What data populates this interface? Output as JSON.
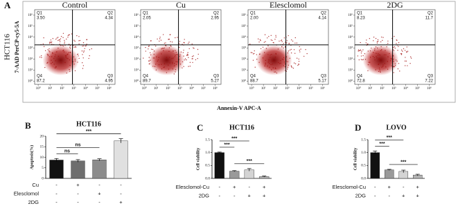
{
  "chart_data": [
    {
      "type": "flow",
      "panel_label": "A",
      "row_label": "HCT116",
      "ylabel": "7-AAD PerCP-cy5-5A",
      "xlabel": "Annexin-V APC-A",
      "quadrant_names": [
        "Q1",
        "Q2",
        "Q3",
        "Q4"
      ],
      "xlim": [
        -0.3,
        6.5
      ],
      "ylim": [
        -0.3,
        6.5
      ],
      "xticks": [
        {
          "value": 0,
          "label": "10⁰"
        },
        {
          "value": 1,
          "label": "10¹"
        },
        {
          "value": 2,
          "label": "10²"
        },
        {
          "value": 3,
          "label": "10³"
        },
        {
          "value": 4,
          "label": "10⁴"
        },
        {
          "value": 5,
          "label": "10⁵"
        },
        {
          "value": 6,
          "label": "10⁶"
        }
      ],
      "yticks": [
        {
          "value": 0,
          "label": "10⁰"
        },
        {
          "value": 1,
          "label": "10¹"
        },
        {
          "value": 2,
          "label": "10²"
        },
        {
          "value": 3,
          "label": "10³"
        },
        {
          "value": 4,
          "label": "10⁴"
        },
        {
          "value": 5,
          "label": "10⁵"
        },
        {
          "value": 6,
          "label": "10⁶"
        }
      ],
      "gate": [
        2.9,
        3.3
      ],
      "color": "#a00d0d",
      "panels": [
        {
          "title": "Control",
          "values": [
            3.5,
            4.34,
            4.95,
            87.2
          ],
          "value_labels": [
            "3.50",
            "4.34",
            "4.95",
            "87.2"
          ]
        },
        {
          "title": "Cu",
          "values": [
            2.05,
            2.95,
            5.27,
            89.7
          ],
          "value_labels": [
            "2.05",
            "2.95",
            "5.27",
            "89.7"
          ]
        },
        {
          "title": "Elesclomol",
          "values": [
            2.0,
            4.14,
            5.17,
            88.7
          ],
          "value_labels": [
            "2.00",
            "4.14",
            "5.17",
            "88.7"
          ]
        },
        {
          "title": "2DG",
          "values": [
            8.23,
            11.7,
            7.22,
            72.8
          ],
          "value_labels": [
            "8.23",
            "11.7",
            "7.22",
            "72.8"
          ]
        }
      ]
    },
    {
      "type": "bar",
      "panel_label": "B",
      "title": "HCT116",
      "ylabel": "Apoptosis(%)",
      "ylim": [
        0,
        20
      ],
      "yticks": [
        0,
        5,
        10,
        15,
        20
      ],
      "values": [
        8.7,
        8.3,
        8.8,
        17.8
      ],
      "errors": [
        0.7,
        0.6,
        0.5,
        1.0
      ],
      "colors": [
        "#111111",
        "#6e6e6e",
        "#8c8c8c",
        "#e0e0e0"
      ],
      "conditions": [
        {
          "name": "Cu",
          "signs": [
            "-",
            "+",
            "-",
            "-"
          ]
        },
        {
          "name": "Elesclomol",
          "signs": [
            "-",
            "-",
            "+",
            "-"
          ]
        },
        {
          "name": "2DG",
          "signs": [
            "-",
            "-",
            "-",
            "+"
          ]
        }
      ],
      "brackets": [
        {
          "from": 0,
          "to": 1,
          "label": "ns"
        },
        {
          "from": 0,
          "to": 2,
          "label": "ns"
        },
        {
          "from": 0,
          "to": 3,
          "label": "***"
        }
      ]
    },
    {
      "type": "bar",
      "panel_label": "C",
      "title": "HCT116",
      "ylabel": "Cell viability",
      "ylim": [
        0,
        1.5
      ],
      "yticks": [
        {
          "value": 0,
          "label": "0.0"
        },
        0.5,
        {
          "value": 1,
          "label": "1.0"
        },
        1.5
      ],
      "values": [
        1.0,
        0.28,
        0.33,
        0.07
      ],
      "errors": [
        0.02,
        0.02,
        0.05,
        0.02
      ],
      "colors": [
        "#111111",
        "#9a9a9a",
        "#d4d4d4",
        "#b4b4b4"
      ],
      "conditions": [
        {
          "name": "Elesclomol-Cu",
          "signs": [
            "-",
            "+",
            "-",
            "+"
          ]
        },
        {
          "name": "2DG",
          "signs": [
            "-",
            "-",
            "+",
            "+"
          ]
        }
      ],
      "brackets": [
        {
          "from": 0,
          "to": 1,
          "label": "***"
        },
        {
          "from": 0,
          "to": 2,
          "label": "***"
        },
        {
          "from": 1,
          "to": 3,
          "label": "***"
        }
      ]
    },
    {
      "type": "bar",
      "panel_label": "D",
      "title": "LOVO",
      "ylabel": "Cell viability",
      "ylim": [
        0,
        1.5
      ],
      "yticks": [
        {
          "value": 0,
          "label": "0.0"
        },
        0.5,
        {
          "value": 1,
          "label": "1.0"
        },
        1.5
      ],
      "values": [
        1.0,
        0.33,
        0.27,
        0.13
      ],
      "errors": [
        0.06,
        0.02,
        0.05,
        0.03
      ],
      "colors": [
        "#111111",
        "#9a9a9a",
        "#d4d4d4",
        "#b4b4b4"
      ],
      "conditions": [
        {
          "name": "Elesclomol-Cu",
          "signs": [
            "-",
            "+",
            "-",
            "+"
          ]
        },
        {
          "name": "2DG",
          "signs": [
            "-",
            "-",
            "+",
            "+"
          ]
        }
      ],
      "brackets": [
        {
          "from": 0,
          "to": 1,
          "label": "***"
        },
        {
          "from": 0,
          "to": 2,
          "label": "***"
        },
        {
          "from": 1,
          "to": 3,
          "label": "***"
        }
      ]
    }
  ]
}
